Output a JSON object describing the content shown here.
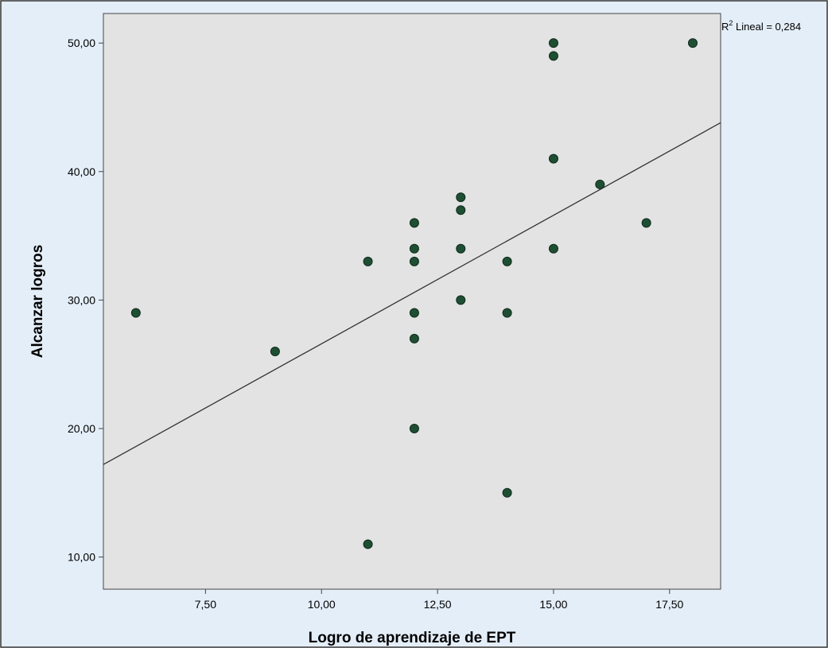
{
  "chart_data": {
    "type": "scatter",
    "title": "",
    "xlabel": "Logro de aprendizaje de EPT",
    "ylabel": "Alcanzar logros",
    "xlim": [
      5.3,
      18.6
    ],
    "ylim": [
      7.5,
      52.3
    ],
    "x_ticks": [
      7.5,
      10,
      12.5,
      15,
      17.5
    ],
    "x_tick_labels": [
      "7,50",
      "10,00",
      "12,50",
      "15,00",
      "17,50"
    ],
    "y_ticks": [
      10,
      20,
      30,
      40,
      50
    ],
    "y_tick_labels": [
      "10,00",
      "20,00",
      "30,00",
      "40,00",
      "50,00"
    ],
    "grid": false,
    "points": [
      {
        "x": 6,
        "y": 29
      },
      {
        "x": 9,
        "y": 26
      },
      {
        "x": 11,
        "y": 33
      },
      {
        "x": 11,
        "y": 11
      },
      {
        "x": 12,
        "y": 36
      },
      {
        "x": 12,
        "y": 34
      },
      {
        "x": 12,
        "y": 33
      },
      {
        "x": 12,
        "y": 29
      },
      {
        "x": 12,
        "y": 27
      },
      {
        "x": 12,
        "y": 20
      },
      {
        "x": 13,
        "y": 38
      },
      {
        "x": 13,
        "y": 37
      },
      {
        "x": 13,
        "y": 34
      },
      {
        "x": 13,
        "y": 30
      },
      {
        "x": 14,
        "y": 33
      },
      {
        "x": 14,
        "y": 29
      },
      {
        "x": 14,
        "y": 15
      },
      {
        "x": 15,
        "y": 50
      },
      {
        "x": 15,
        "y": 49
      },
      {
        "x": 15,
        "y": 41
      },
      {
        "x": 15,
        "y": 34
      },
      {
        "x": 16,
        "y": 39
      },
      {
        "x": 17,
        "y": 36
      },
      {
        "x": 18,
        "y": 50
      }
    ],
    "fit_line": {
      "type": "linear",
      "slope": 2.0,
      "intercept": 6.6,
      "label_prefix": "R",
      "label_superscript": "2",
      "label_text": " Lineal = 0,284"
    },
    "colors": {
      "plot_background": "#e3e3e3",
      "outer_background": "#e4eef9",
      "point_fill": "#1e4f33",
      "point_stroke": "#0f2a1b",
      "fit_line": "#333333",
      "axis": "#444444"
    }
  }
}
